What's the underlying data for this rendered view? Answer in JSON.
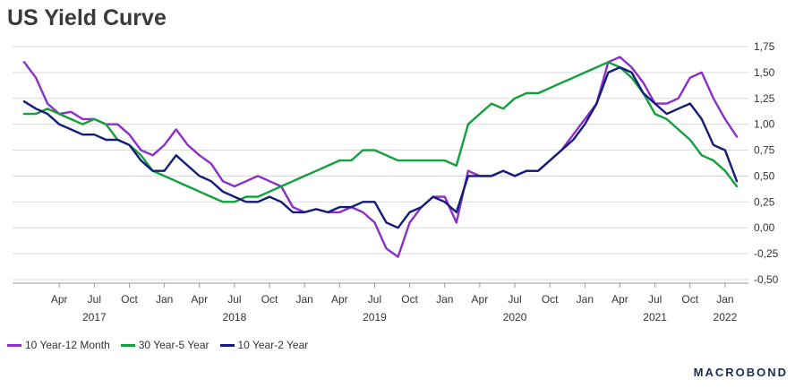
{
  "chart_data": {
    "type": "line",
    "title": "US Yield Curve",
    "xlabel": "",
    "ylabel": "",
    "x_range": [
      "2016-12",
      "2022-03"
    ],
    "ylim": [
      -0.5,
      1.75
    ],
    "y_ticks": [
      -0.5,
      -0.25,
      0.0,
      0.25,
      0.5,
      0.75,
      1.0,
      1.25,
      1.5,
      1.75
    ],
    "y_tick_labels": [
      "-0,50",
      "-0,25",
      "0,00",
      "0,25",
      "0,50",
      "0,75",
      "1,00",
      "1,25",
      "1,50",
      "1,75"
    ],
    "x_ticks": [
      "2017-04",
      "2017-07",
      "2017-10",
      "2018-01",
      "2018-04",
      "2018-07",
      "2018-10",
      "2019-01",
      "2019-04",
      "2019-07",
      "2019-10",
      "2020-01",
      "2020-04",
      "2020-07",
      "2020-10",
      "2021-01",
      "2021-04",
      "2021-07",
      "2021-10",
      "2022-01"
    ],
    "x_tick_labels": [
      "Apr",
      "Jul",
      "Oct",
      "Jan",
      "Apr",
      "Jul",
      "Oct",
      "Jan",
      "Apr",
      "Jul",
      "Oct",
      "Jan",
      "Apr",
      "Jul",
      "Oct",
      "Jan",
      "Apr",
      "Jul",
      "Oct",
      "Jan"
    ],
    "year_labels": [
      {
        "year": "2017",
        "x": "2017-07"
      },
      {
        "year": "2018",
        "x": "2018-07"
      },
      {
        "year": "2019",
        "x": "2019-07"
      },
      {
        "year": "2020",
        "x": "2020-07"
      },
      {
        "year": "2021",
        "x": "2021-07"
      },
      {
        "year": "2022",
        "x": "2022-01"
      }
    ],
    "y_axis_side": "right",
    "grid": "horizontal",
    "legend_position": "bottom-left",
    "series": [
      {
        "name": "10 Year-12 Month",
        "color": "#8b2fc9",
        "x": [
          "2017-01",
          "2017-02",
          "2017-03",
          "2017-04",
          "2017-05",
          "2017-06",
          "2017-07",
          "2017-08",
          "2017-09",
          "2017-10",
          "2017-11",
          "2017-12",
          "2018-01",
          "2018-02",
          "2018-03",
          "2018-04",
          "2018-05",
          "2018-06",
          "2018-07",
          "2018-08",
          "2018-09",
          "2018-10",
          "2018-11",
          "2018-12",
          "2019-01",
          "2019-02",
          "2019-03",
          "2019-04",
          "2019-05",
          "2019-06",
          "2019-07",
          "2019-08",
          "2019-09",
          "2019-10",
          "2019-11",
          "2019-12",
          "2020-01",
          "2020-02",
          "2020-03",
          "2020-04",
          "2020-05",
          "2020-06",
          "2020-07",
          "2020-08",
          "2020-09",
          "2020-10",
          "2020-11",
          "2020-12",
          "2021-01",
          "2021-02",
          "2021-03",
          "2021-04",
          "2021-05",
          "2021-06",
          "2021-07",
          "2021-08",
          "2021-09",
          "2021-10",
          "2021-11",
          "2021-12",
          "2022-01",
          "2022-02"
        ],
        "y": [
          1.6,
          1.45,
          1.2,
          1.1,
          1.12,
          1.05,
          1.05,
          1.0,
          1.0,
          0.9,
          0.75,
          0.7,
          0.8,
          0.95,
          0.8,
          0.7,
          0.62,
          0.45,
          0.4,
          0.45,
          0.5,
          0.45,
          0.4,
          0.2,
          0.15,
          0.18,
          0.15,
          0.15,
          0.2,
          0.15,
          0.05,
          -0.2,
          -0.28,
          0.05,
          0.2,
          0.3,
          0.3,
          0.05,
          0.55,
          0.5,
          0.5,
          0.55,
          0.5,
          0.55,
          0.55,
          0.65,
          0.75,
          0.9,
          1.05,
          1.2,
          1.6,
          1.65,
          1.55,
          1.4,
          1.2,
          1.2,
          1.25,
          1.45,
          1.5,
          1.25,
          1.05,
          0.88
        ]
      },
      {
        "name": "30 Year-5 Year",
        "color": "#12a03c",
        "x": [
          "2017-01",
          "2017-02",
          "2017-03",
          "2017-04",
          "2017-05",
          "2017-06",
          "2017-07",
          "2017-08",
          "2017-09",
          "2017-10",
          "2017-11",
          "2017-12",
          "2018-01",
          "2018-02",
          "2018-03",
          "2018-04",
          "2018-05",
          "2018-06",
          "2018-07",
          "2018-08",
          "2018-09",
          "2018-10",
          "2018-11",
          "2018-12",
          "2019-01",
          "2019-02",
          "2019-03",
          "2019-04",
          "2019-05",
          "2019-06",
          "2019-07",
          "2019-08",
          "2019-09",
          "2019-10",
          "2019-11",
          "2019-12",
          "2020-01",
          "2020-02",
          "2020-03",
          "2020-04",
          "2020-05",
          "2020-06",
          "2020-07",
          "2020-08",
          "2020-09",
          "2020-10",
          "2020-11",
          "2020-12",
          "2021-01",
          "2021-02",
          "2021-03",
          "2021-04",
          "2021-05",
          "2021-06",
          "2021-07",
          "2021-08",
          "2021-09",
          "2021-10",
          "2021-11",
          "2021-12",
          "2022-01",
          "2022-02"
        ],
        "y": [
          1.1,
          1.1,
          1.15,
          1.1,
          1.05,
          1.0,
          1.05,
          1.0,
          0.85,
          0.8,
          0.7,
          0.55,
          0.5,
          0.45,
          0.4,
          0.35,
          0.3,
          0.25,
          0.25,
          0.3,
          0.3,
          0.35,
          0.4,
          0.45,
          0.5,
          0.55,
          0.6,
          0.65,
          0.65,
          0.75,
          0.75,
          0.7,
          0.65,
          0.65,
          0.65,
          0.65,
          0.65,
          0.6,
          1.0,
          1.1,
          1.2,
          1.15,
          1.25,
          1.3,
          1.3,
          1.35,
          1.4,
          1.45,
          1.5,
          1.55,
          1.6,
          1.55,
          1.45,
          1.3,
          1.1,
          1.05,
          0.95,
          0.85,
          0.7,
          0.65,
          0.55,
          0.4
        ]
      },
      {
        "name": "10 Year-2 Year",
        "color": "#141c7a",
        "x": [
          "2017-01",
          "2017-02",
          "2017-03",
          "2017-04",
          "2017-05",
          "2017-06",
          "2017-07",
          "2017-08",
          "2017-09",
          "2017-10",
          "2017-11",
          "2017-12",
          "2018-01",
          "2018-02",
          "2018-03",
          "2018-04",
          "2018-05",
          "2018-06",
          "2018-07",
          "2018-08",
          "2018-09",
          "2018-10",
          "2018-11",
          "2018-12",
          "2019-01",
          "2019-02",
          "2019-03",
          "2019-04",
          "2019-05",
          "2019-06",
          "2019-07",
          "2019-08",
          "2019-09",
          "2019-10",
          "2019-11",
          "2019-12",
          "2020-01",
          "2020-02",
          "2020-03",
          "2020-04",
          "2020-05",
          "2020-06",
          "2020-07",
          "2020-08",
          "2020-09",
          "2020-10",
          "2020-11",
          "2020-12",
          "2021-01",
          "2021-02",
          "2021-03",
          "2021-04",
          "2021-05",
          "2021-06",
          "2021-07",
          "2021-08",
          "2021-09",
          "2021-10",
          "2021-11",
          "2021-12",
          "2022-01",
          "2022-02"
        ],
        "y": [
          1.22,
          1.15,
          1.1,
          1.0,
          0.95,
          0.9,
          0.9,
          0.85,
          0.85,
          0.8,
          0.65,
          0.55,
          0.55,
          0.7,
          0.6,
          0.5,
          0.45,
          0.35,
          0.3,
          0.25,
          0.25,
          0.3,
          0.25,
          0.15,
          0.15,
          0.18,
          0.15,
          0.2,
          0.2,
          0.25,
          0.25,
          0.05,
          0.0,
          0.15,
          0.2,
          0.3,
          0.25,
          0.15,
          0.5,
          0.5,
          0.5,
          0.55,
          0.5,
          0.55,
          0.55,
          0.65,
          0.75,
          0.85,
          1.0,
          1.2,
          1.5,
          1.55,
          1.5,
          1.3,
          1.2,
          1.1,
          1.15,
          1.2,
          1.05,
          0.8,
          0.75,
          0.45
        ]
      }
    ]
  },
  "brand": "MACROBOND"
}
